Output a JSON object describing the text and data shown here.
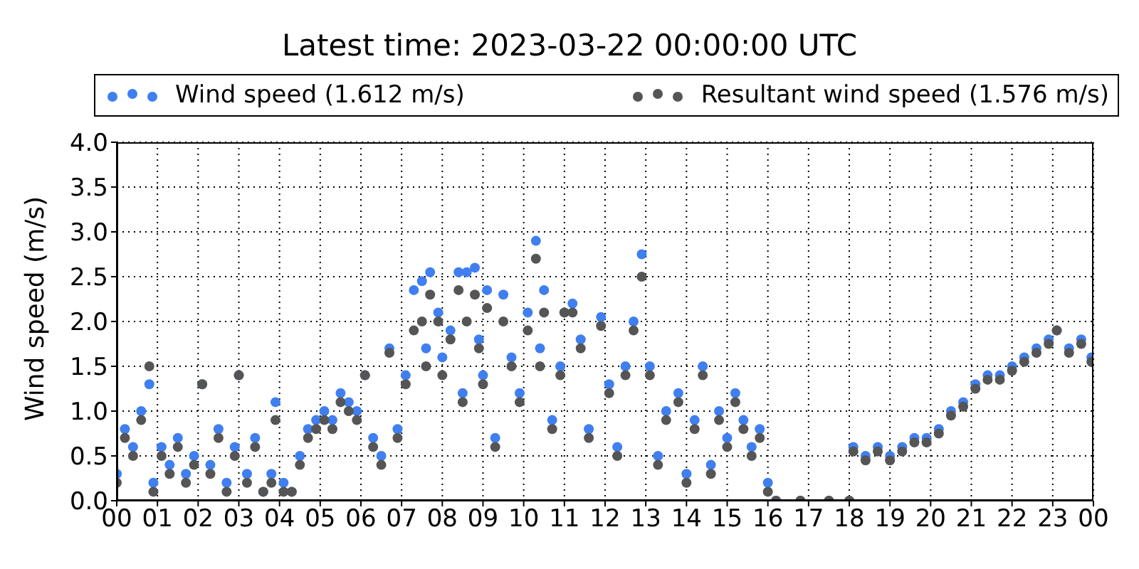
{
  "chart_data": {
    "type": "scatter",
    "title": "Latest time: 2023-03-22 00:00:00 UTC",
    "ylabel": "Wind speed (m/s)",
    "legend": "top",
    "marker": "circle",
    "grid": true,
    "xlim": [
      0,
      24
    ],
    "xticks": [
      {
        "value": 0,
        "label": "00"
      },
      {
        "value": 1,
        "label": "01"
      },
      {
        "value": 2,
        "label": "02"
      },
      {
        "value": 3,
        "label": "03"
      },
      {
        "value": 4,
        "label": "04"
      },
      {
        "value": 5,
        "label": "05"
      },
      {
        "value": 6,
        "label": "06"
      },
      {
        "value": 7,
        "label": "07"
      },
      {
        "value": 8,
        "label": "08"
      },
      {
        "value": 9,
        "label": "09"
      },
      {
        "value": 10,
        "label": "10"
      },
      {
        "value": 11,
        "label": "11"
      },
      {
        "value": 12,
        "label": "12"
      },
      {
        "value": 13,
        "label": "13"
      },
      {
        "value": 14,
        "label": "14"
      },
      {
        "value": 15,
        "label": "15"
      },
      {
        "value": 16,
        "label": "16"
      },
      {
        "value": 17,
        "label": "17"
      },
      {
        "value": 18,
        "label": "18"
      },
      {
        "value": 19,
        "label": "19"
      },
      {
        "value": 20,
        "label": "20"
      },
      {
        "value": 21,
        "label": "21"
      },
      {
        "value": 22,
        "label": "22"
      },
      {
        "value": 23,
        "label": "23"
      },
      {
        "value": 24,
        "label": "00"
      }
    ],
    "ylim": [
      0,
      4
    ],
    "yticks": [
      {
        "value": 0,
        "label": "0.0"
      },
      {
        "value": 0.5,
        "label": "0.5"
      },
      {
        "value": 1,
        "label": "1.0"
      },
      {
        "value": 1.5,
        "label": "1.5"
      },
      {
        "value": 2,
        "label": "2.0"
      },
      {
        "value": 2.5,
        "label": "2.5"
      },
      {
        "value": 3,
        "label": "3.0"
      },
      {
        "value": 3.5,
        "label": "3.5"
      },
      {
        "value": 4,
        "label": "4.0"
      }
    ],
    "x": [
      0.0,
      0.2,
      0.4,
      0.6,
      0.8,
      0.9,
      1.1,
      1.3,
      1.5,
      1.7,
      1.9,
      2.1,
      2.3,
      2.5,
      2.7,
      2.9,
      3.0,
      3.2,
      3.4,
      3.6,
      3.8,
      3.9,
      4.1,
      4.3,
      4.5,
      4.7,
      4.9,
      5.1,
      5.3,
      5.5,
      5.7,
      5.9,
      6.1,
      6.3,
      6.5,
      6.7,
      6.9,
      7.1,
      7.3,
      7.5,
      7.6,
      7.7,
      7.9,
      8.0,
      8.2,
      8.4,
      8.5,
      8.6,
      8.8,
      8.9,
      9.0,
      9.1,
      9.3,
      9.5,
      9.7,
      9.9,
      10.1,
      10.3,
      10.4,
      10.5,
      10.7,
      10.9,
      11.0,
      11.2,
      11.4,
      11.6,
      11.9,
      12.1,
      12.3,
      12.5,
      12.7,
      12.9,
      13.1,
      13.3,
      13.5,
      13.8,
      14.0,
      14.2,
      14.4,
      14.6,
      14.8,
      15.0,
      15.2,
      15.4,
      15.6,
      15.8,
      16.0,
      16.2,
      16.8,
      17.5,
      18.0,
      18.1,
      18.4,
      18.7,
      19.0,
      19.3,
      19.6,
      19.9,
      20.2,
      20.5,
      20.8,
      21.1,
      21.4,
      21.7,
      22.0,
      22.3,
      22.6,
      22.9,
      23.1,
      23.4,
      23.7,
      23.95
    ],
    "series": [
      {
        "name": "Wind speed (1.612 m/s)",
        "color": "#3f7ff0",
        "values": [
          0.3,
          0.8,
          0.6,
          1.0,
          1.3,
          0.2,
          0.6,
          0.4,
          0.7,
          0.3,
          0.5,
          1.3,
          0.4,
          0.8,
          0.2,
          0.6,
          1.4,
          0.3,
          0.7,
          0.1,
          0.3,
          1.1,
          0.2,
          0.1,
          0.5,
          0.8,
          0.9,
          1.0,
          0.9,
          1.2,
          1.1,
          1.0,
          1.4,
          0.7,
          0.5,
          1.7,
          0.8,
          1.4,
          2.35,
          2.45,
          1.7,
          2.55,
          2.1,
          1.6,
          1.9,
          2.55,
          1.2,
          2.55,
          2.6,
          1.8,
          1.4,
          2.35,
          0.7,
          2.3,
          1.6,
          1.2,
          2.1,
          2.9,
          1.7,
          2.35,
          0.9,
          1.5,
          2.1,
          2.2,
          1.8,
          0.8,
          2.05,
          1.3,
          0.6,
          1.5,
          2.0,
          2.75,
          1.5,
          0.5,
          1.0,
          1.2,
          0.3,
          0.9,
          1.5,
          0.4,
          1.0,
          0.7,
          1.2,
          0.9,
          0.6,
          0.8,
          0.2,
          0.0,
          0.0,
          0.0,
          0.0,
          0.6,
          0.5,
          0.6,
          0.5,
          0.6,
          0.7,
          0.7,
          0.8,
          1.0,
          1.1,
          1.3,
          1.4,
          1.4,
          1.5,
          1.6,
          1.7,
          1.8,
          1.9,
          1.7,
          1.8,
          1.6
        ]
      },
      {
        "name": "Resultant wind speed (1.576 m/s)",
        "color": "#555555",
        "values": [
          0.2,
          0.7,
          0.5,
          0.9,
          1.5,
          0.1,
          0.5,
          0.3,
          0.6,
          0.2,
          0.4,
          1.3,
          0.3,
          0.7,
          0.1,
          0.5,
          1.4,
          0.2,
          0.6,
          0.1,
          0.2,
          0.9,
          0.1,
          0.1,
          0.4,
          0.7,
          0.8,
          0.9,
          0.8,
          1.1,
          1.0,
          0.9,
          1.4,
          0.6,
          0.4,
          1.65,
          0.7,
          1.3,
          1.9,
          2.0,
          1.5,
          2.3,
          2.0,
          1.4,
          1.8,
          2.35,
          1.1,
          2.0,
          2.3,
          1.7,
          1.3,
          2.15,
          0.6,
          2.0,
          1.5,
          1.1,
          1.9,
          2.7,
          1.5,
          2.1,
          0.8,
          1.4,
          2.1,
          2.1,
          1.7,
          0.7,
          1.95,
          1.2,
          0.5,
          1.4,
          1.9,
          2.5,
          1.4,
          0.4,
          0.9,
          1.1,
          0.2,
          0.8,
          1.4,
          0.3,
          0.9,
          0.6,
          1.1,
          0.8,
          0.5,
          0.7,
          0.1,
          0.0,
          0.0,
          0.0,
          0.0,
          0.55,
          0.45,
          0.55,
          0.45,
          0.55,
          0.65,
          0.65,
          0.75,
          0.95,
          1.05,
          1.25,
          1.35,
          1.35,
          1.45,
          1.55,
          1.65,
          1.75,
          1.9,
          1.65,
          1.75,
          1.55
        ]
      }
    ]
  }
}
